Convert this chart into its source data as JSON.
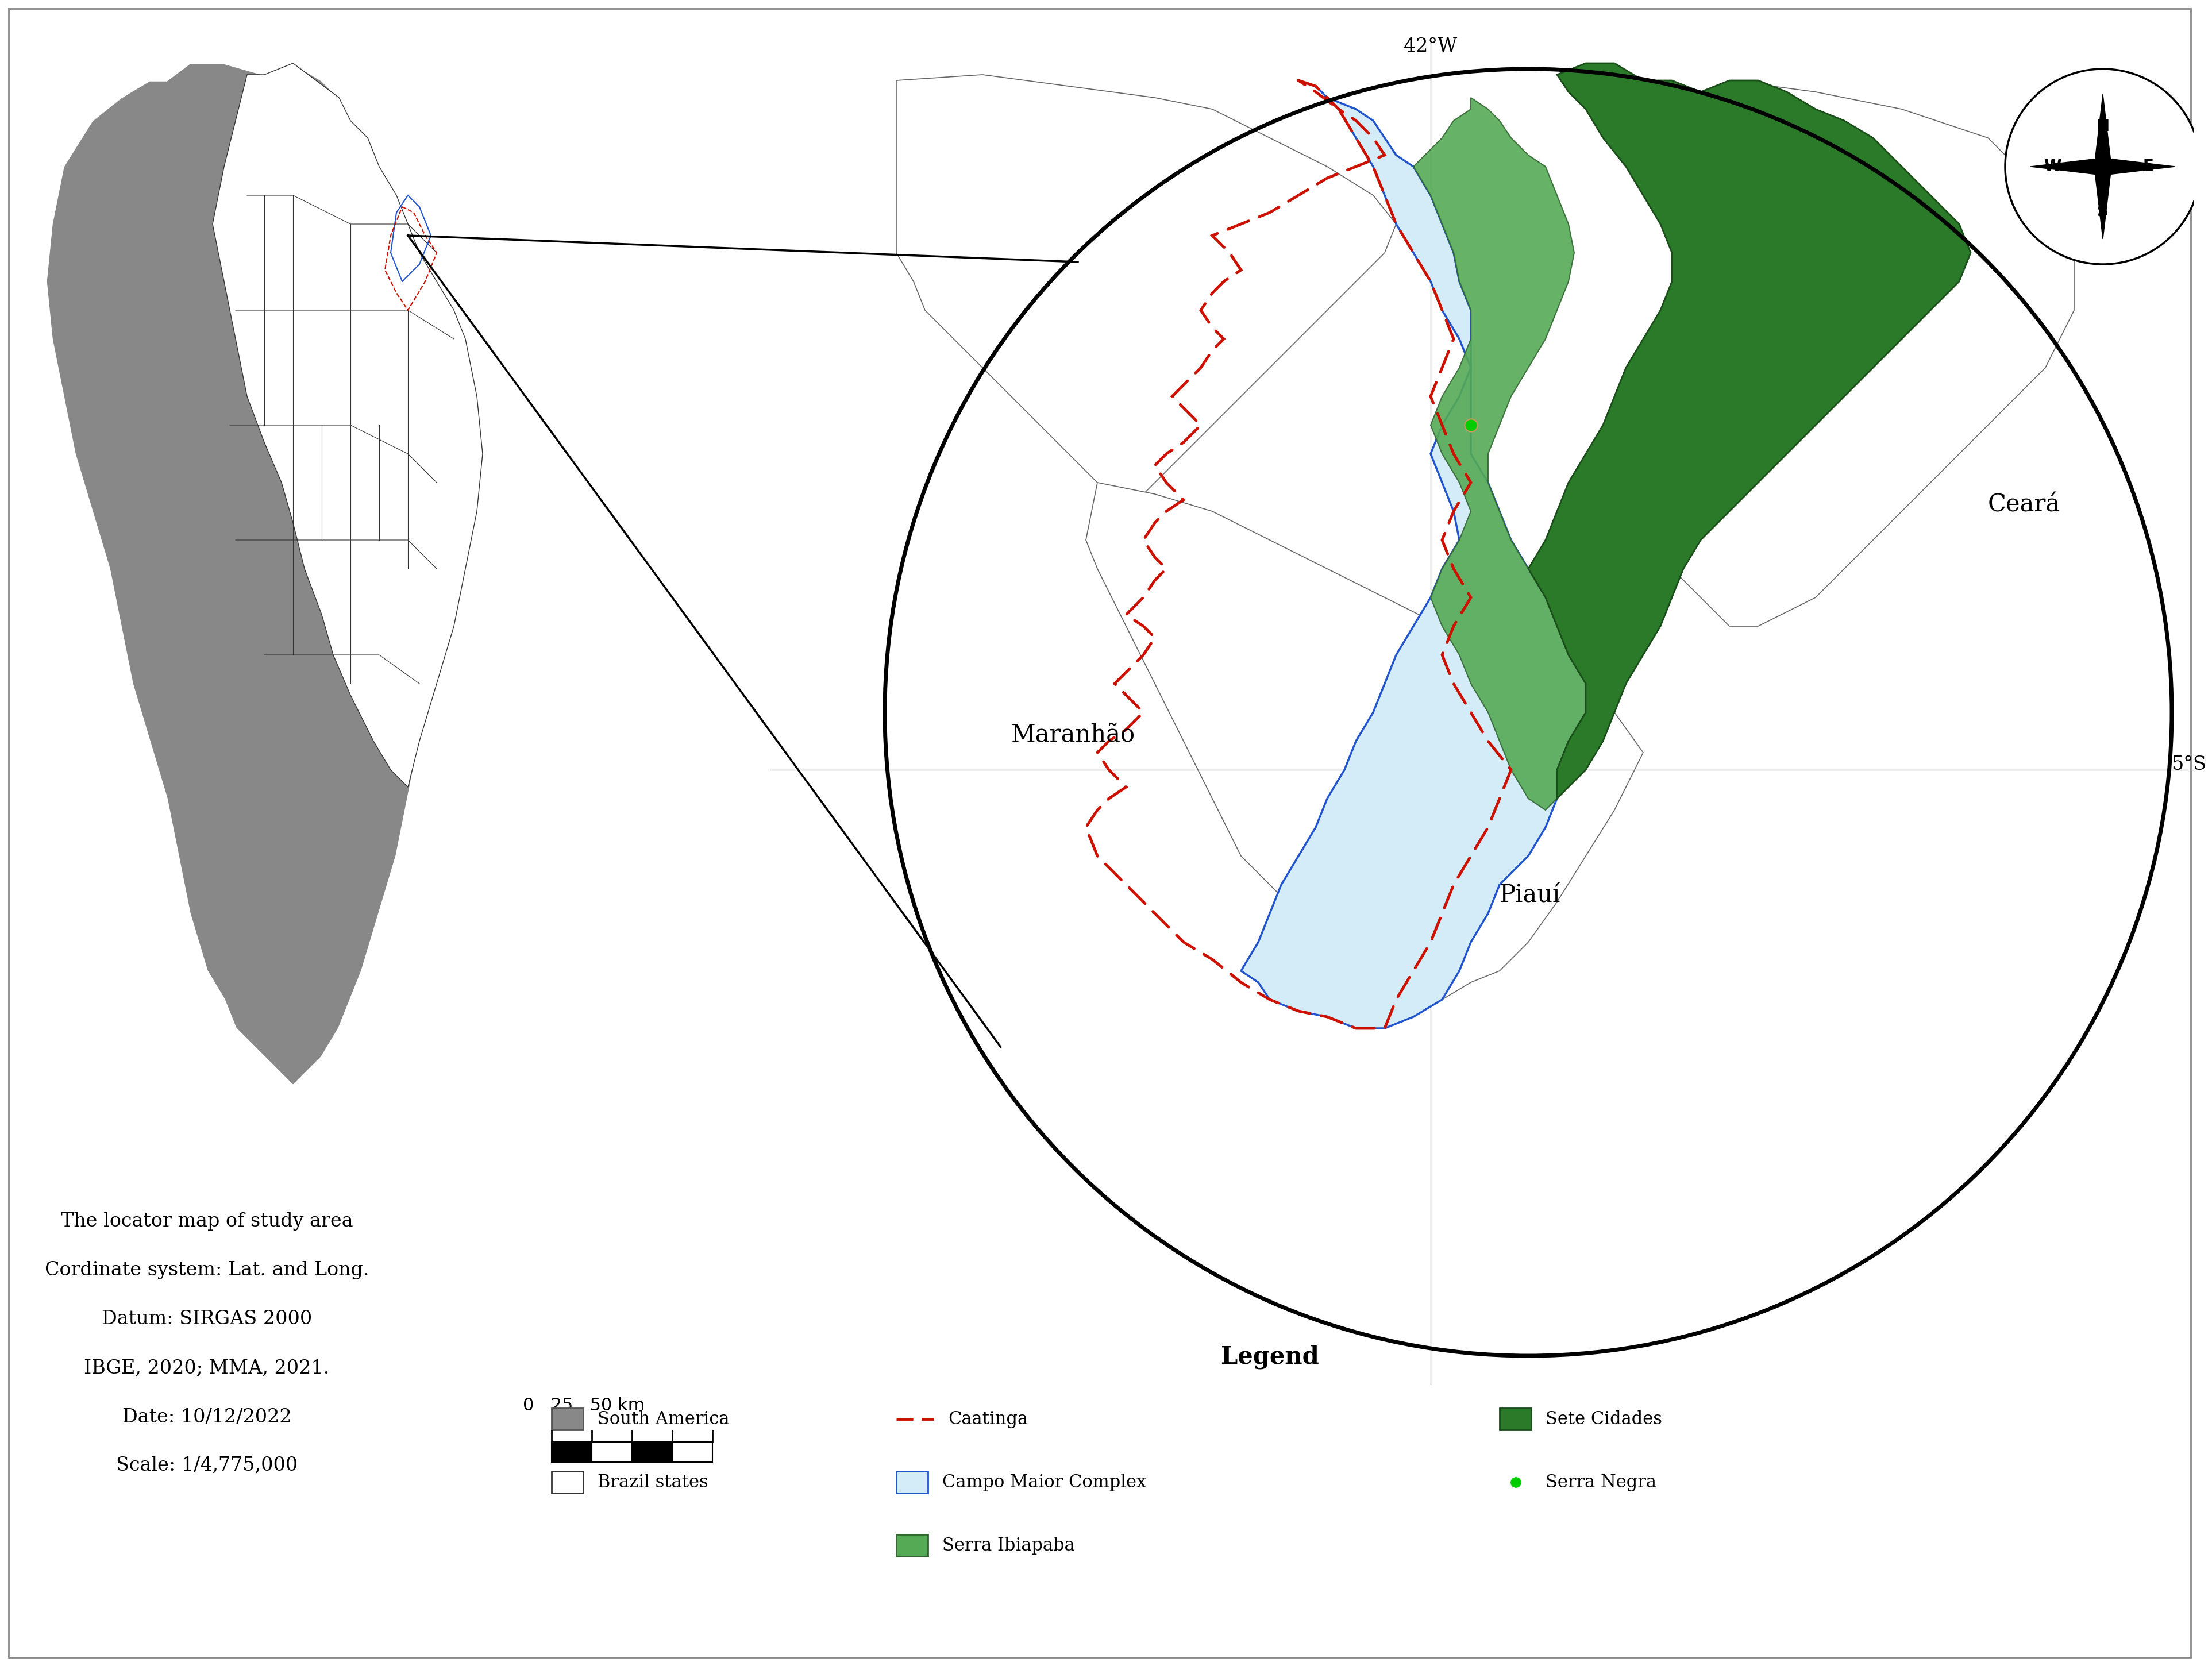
{
  "background_color": "#ffffff",
  "fig_width": 38.08,
  "fig_height": 28.8,
  "info_text_lines": [
    "The locator map of study area",
    "Cordinate system: Lat. and Long.",
    "Datum: SIRGAS 2000",
    "IBGE, 2020; MMA, 2021.",
    "Date: 10/12/2022",
    "Scale: 1/4,775,000"
  ],
  "legend_title": "Legend",
  "colors": {
    "south_america_gray": "#888888",
    "brazil_white": "#ffffff",
    "brazil_border": "#333333",
    "campo_maior_fill": "#d4ecf7",
    "campo_maior_border": "#2255cc",
    "caatinga_dash": "#cc1100",
    "sete_cidades_fill": "#2a7a2a",
    "serra_ibiapaba_fill": "#55aa55",
    "serra_negra_dot": "#00cc00",
    "circle_border": "#000000",
    "gridline": "#aaaaaa",
    "state_line": "#555555"
  },
  "map_labels": {
    "maranhao": "Maranhão",
    "ceara": "Ceará",
    "piaui": "Piauí",
    "lon_label": "42°W",
    "lat_label": "5°S"
  }
}
